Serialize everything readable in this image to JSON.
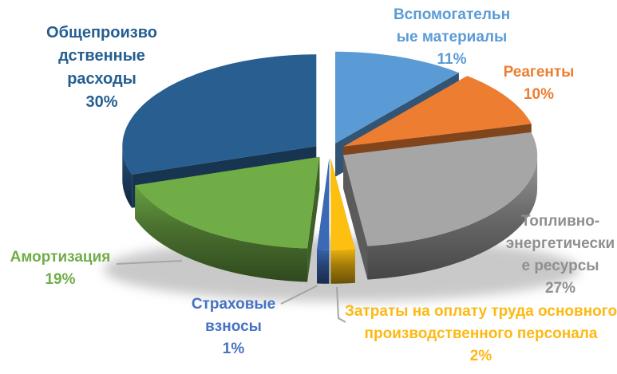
{
  "chart_data": {
    "type": "pie",
    "variant": "3d-exploded",
    "title": "",
    "legend_position": "none",
    "labels_position": "outside",
    "start_angle_deg": 0,
    "direction": "clockwise",
    "unit": "%",
    "categories": [
      "Вспомогательные материалы",
      "Реагенты",
      "Топливно-энергетические ресурсы",
      "Затраты на оплату труда основного производственного персонала",
      "Страховые взносы",
      "Амортизация",
      "Общепроизводственные расходы"
    ],
    "values": [
      11,
      10,
      27,
      2,
      1,
      19,
      30
    ],
    "colors": [
      "#5B9BD5",
      "#ED7D31",
      "#A6A6A6",
      "#FDC010",
      "#3B69B5",
      "#70AD47",
      "#295E91"
    ]
  },
  "callouts": {
    "vspomogatelnye": {
      "text": "Вспомогательн\nые материалы\n11%",
      "color": "#5B9BD5"
    },
    "reagenty": {
      "text": "Реагенты\n10%",
      "color": "#ED7D31"
    },
    "toplivno": {
      "text": "Топливно-\nэнергетически\nе ресурсы\n27%",
      "color": "#8F8F8F"
    },
    "zatraty": {
      "text": "Затраты на оплату труда основного\nпроизводственного персонала\n2%",
      "color": "#FDB913"
    },
    "strakhovye": {
      "text": "Страховые\nвзносы\n1%",
      "color": "#4472C4"
    },
    "amortizatsiya": {
      "text": "Амортизация\n19%",
      "color": "#70AD47"
    },
    "obshcheproizvodstvennye": {
      "text": "Общепроизво\nдственные\nрасходы\n30%",
      "color": "#255E91"
    }
  }
}
